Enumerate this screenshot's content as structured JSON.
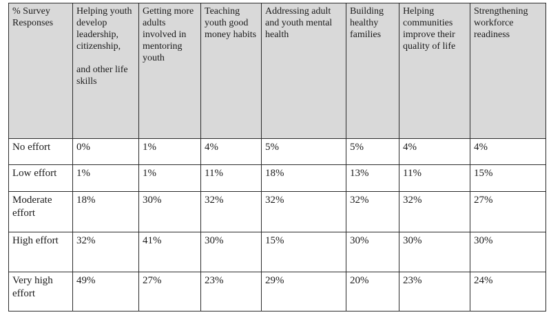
{
  "table": {
    "columns": [
      {
        "label": "% Survey Responses"
      },
      {
        "label": "Helping youth develop leadership, citizenship,",
        "label_cont": "and other life skills"
      },
      {
        "label": "Getting more adults involved in mentoring youth"
      },
      {
        "label": "Teaching youth good money habits"
      },
      {
        "label": "Addressing adult and youth mental health"
      },
      {
        "label": "Building healthy families"
      },
      {
        "label": "Helping communities improve their quality of life"
      },
      {
        "label": "Strengthening workforce readiness"
      }
    ],
    "rows": [
      {
        "label": "No effort",
        "values": [
          "0%",
          "1%",
          "4%",
          "5%",
          "5%",
          "4%",
          "4%"
        ]
      },
      {
        "label": "Low effort",
        "values": [
          "1%",
          "1%",
          "11%",
          "18%",
          "13%",
          "11%",
          "15%"
        ]
      },
      {
        "label": "Moderate effort",
        "values": [
          "18%",
          "30%",
          "32%",
          "32%",
          "32%",
          "32%",
          "27%"
        ]
      },
      {
        "label": "High effort",
        "values": [
          "32%",
          "41%",
          "30%",
          "15%",
          "30%",
          "30%",
          "30%"
        ]
      },
      {
        "label": "Very high effort",
        "values": [
          "49%",
          "27%",
          "23%",
          "29%",
          "20%",
          "23%",
          "24%"
        ]
      }
    ]
  },
  "colors": {
    "header_bg": "#d9d9d9",
    "body_bg": "#ffffff",
    "border": "#2a2a2a"
  }
}
